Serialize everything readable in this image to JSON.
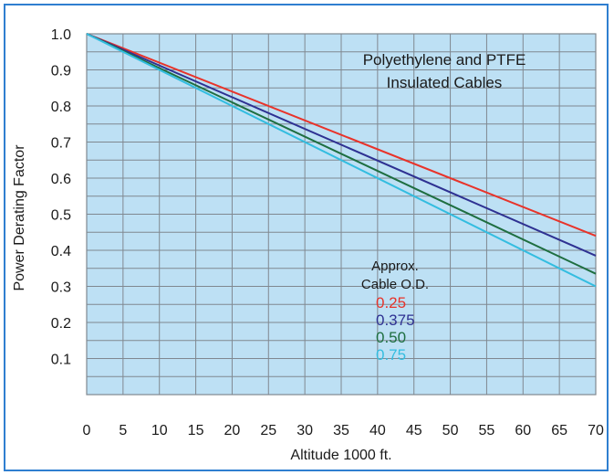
{
  "chart_data": {
    "type": "line",
    "title": "",
    "annotation": [
      "Polyethylene and PTFE",
      "Insulated Cables"
    ],
    "xlabel": "Altitude 1000 ft.",
    "ylabel": "Power Derating Factor",
    "xlim": [
      0,
      70
    ],
    "ylim": [
      0,
      1.0
    ],
    "x_ticks": [
      "0",
      "5",
      "10",
      "15",
      "20",
      "25",
      "30",
      "35",
      "40",
      "45",
      "50",
      "55",
      "60",
      "65",
      "70"
    ],
    "y_ticks": [
      "0.1",
      "0.2",
      "0.3",
      "0.4",
      "0.5",
      "0.6",
      "0.7",
      "0.8",
      "0.9",
      "1.0"
    ],
    "grid": true,
    "plot_background": "#bde0f4",
    "grid_color": "#808890",
    "legend_title": [
      "Approx.",
      "Cable O.D."
    ],
    "legend_position": "center-bottom",
    "series": [
      {
        "name": "0.25",
        "color": "#e8332a",
        "x": [
          0,
          70
        ],
        "y": [
          1.0,
          0.44
        ]
      },
      {
        "name": "0.375",
        "color": "#2e3192",
        "x": [
          0,
          70
        ],
        "y": [
          1.0,
          0.385
        ]
      },
      {
        "name": "0.50",
        "color": "#1e6e40",
        "x": [
          0,
          70
        ],
        "y": [
          1.0,
          0.335
        ]
      },
      {
        "name": "0.75",
        "color": "#33bde0",
        "x": [
          0,
          70
        ],
        "y": [
          1.0,
          0.3
        ]
      }
    ]
  }
}
